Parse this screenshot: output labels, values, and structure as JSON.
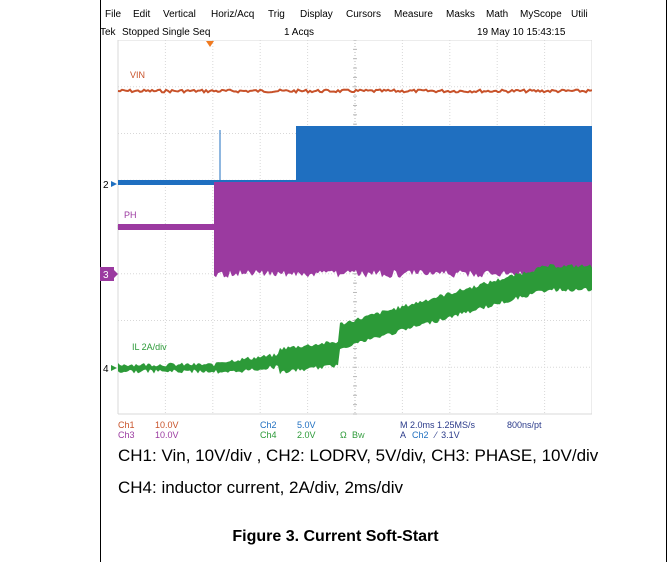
{
  "menu": {
    "items": [
      "File",
      "Edit",
      "Vertical",
      "Horiz/Acq",
      "Trig",
      "Display",
      "Cursors",
      "Measure",
      "Masks",
      "Math",
      "MyScope",
      "Utili"
    ]
  },
  "status": {
    "brand": "Tek",
    "state": "Stopped  Single Seq",
    "acqs": "1 Acqs",
    "datetime": "19 May 10 15:43:15"
  },
  "chart_data": {
    "type": "line",
    "grid": {
      "x_divisions": 10,
      "y_divisions": 8,
      "visible": true
    },
    "x_scale": "2.0ms/div",
    "channel_labels": [
      {
        "text": "VIN",
        "color": "#c8522a"
      },
      {
        "text": "PH",
        "color": "#9b3aa0"
      },
      {
        "text": "IL 2A/div",
        "color": "#2c9a38"
      }
    ],
    "markers": [
      {
        "text": "2",
        "color": "#1f6fc0"
      },
      {
        "text": "3",
        "color": "#9b3aa0"
      },
      {
        "text": "4",
        "color": "#2c9a38"
      }
    ],
    "series": [
      {
        "name": "Ch1",
        "scale": "10.0V",
        "color": "#c8522a"
      },
      {
        "name": "Ch2",
        "scale": "5.0V",
        "color": "#1f6fc0"
      },
      {
        "name": "Ch3",
        "scale": "10.0V",
        "color": "#9b3aa0"
      },
      {
        "name": "Ch4",
        "scale": "2.0V",
        "color": "#2c9a38"
      }
    ],
    "readouts": {
      "ch1": "Ch1",
      "ch1_val": "10.0V",
      "ch3": "Ch3",
      "ch3_val": "10.0V",
      "ch2": "Ch2",
      "ch2_val": "5.0V",
      "ch4": "Ch4",
      "ch4_val": "2.0V",
      "omega": "Ω",
      "bw": "B",
      "bw_sub": "W",
      "timebase": "M 2.0ms 1.25MS/s",
      "resolution": "800ns/pt",
      "trigger_prefix": "A",
      "trigger_ch": "Ch2",
      "trigger_slope": "⁄",
      "trigger_level": "3.1V"
    }
  },
  "caption": {
    "line1": "CH1: Vin, 10V/div , CH2: LODRV, 5V/div, CH3: PHASE, 10V/div",
    "line2": "CH4: inductor current, 2A/div, 2ms/div"
  },
  "figure": {
    "title": "Figure 3. Current Soft-Start"
  }
}
